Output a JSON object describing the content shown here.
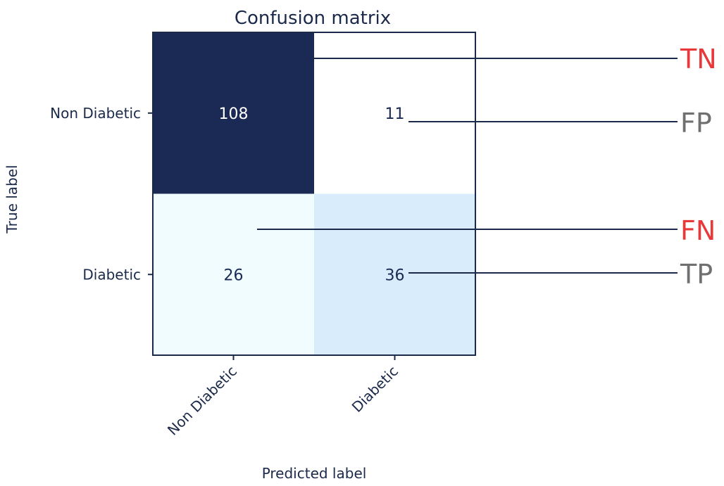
{
  "chart_data": {
    "type": "heatmap",
    "title": "Confusion matrix",
    "xlabel": "Predicted label",
    "ylabel": "True label",
    "x_categories": [
      "Non Diabetic",
      "Diabetic"
    ],
    "y_categories": [
      "Non Diabetic",
      "Diabetic"
    ],
    "values": [
      [
        108,
        11
      ],
      [
        26,
        36
      ]
    ],
    "colormap": "Blues",
    "cell_colors": [
      [
        "#1b2a55",
        "#ffffff"
      ],
      [
        "#f1fcff",
        "#d9ecfb"
      ]
    ],
    "cell_text_colors": [
      [
        "#ffffff",
        "#1b2a55"
      ],
      [
        "#1b2a55",
        "#1b2a55"
      ]
    ],
    "annotations": [
      {
        "label": "TN",
        "cell": [
          0,
          0
        ],
        "color": "#e8393a"
      },
      {
        "label": "FP",
        "cell": [
          0,
          1
        ],
        "color": "#707070"
      },
      {
        "label": "FN",
        "cell": [
          1,
          0
        ],
        "color": "#e8393a"
      },
      {
        "label": "TP",
        "cell": [
          1,
          1
        ],
        "color": "#707070"
      }
    ]
  },
  "colors": {
    "axis": "#1b2a4a",
    "text": "#1b2a4a",
    "leader_line": "#1b2a4a"
  }
}
